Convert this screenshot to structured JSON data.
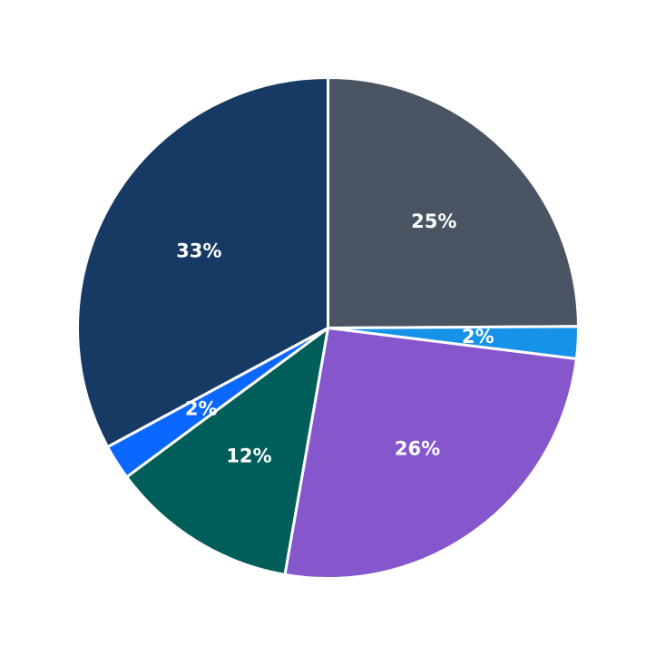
{
  "chart_data": {
    "type": "pie",
    "title": "",
    "start": "12 o'clock",
    "direction": "clockwise",
    "slices": [
      {
        "label": "25%",
        "value": 25.3,
        "color": "#4A5462"
      },
      {
        "label": "2%",
        "value": 2.1,
        "color": "#1692E8"
      },
      {
        "label": "26%",
        "value": 26.2,
        "color": "#8656CC"
      },
      {
        "label": "12%",
        "value": 12.3,
        "color": "#005E5A"
      },
      {
        "label": "2%",
        "value": 2.3,
        "color": "#0A67FF"
      },
      {
        "label": "33%",
        "value": 33.4,
        "color": "#163A63"
      }
    ]
  }
}
